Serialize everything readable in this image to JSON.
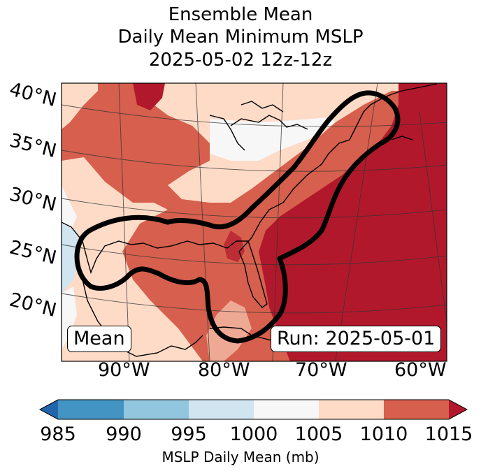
{
  "title": {
    "line1": "Ensemble Mean",
    "line2": "Daily Mean Minimum MSLP",
    "line3": "2025-05-02 12z-12z"
  },
  "map": {
    "lat_labels": [
      "40°N",
      "35°N",
      "30°N",
      "25°N",
      "20°N"
    ],
    "lon_labels": [
      "90°W",
      "80°W",
      "70°W",
      "60°W"
    ],
    "mean_label": "Mean",
    "run_label": "Run: 2025-05-01"
  },
  "colorbar": {
    "ticks": [
      "985",
      "990",
      "995",
      "1000",
      "1005",
      "1010",
      "1015"
    ],
    "label": "MSLP Daily Mean (mb)",
    "colors": [
      "#2166ac",
      "#4393c3",
      "#92c5de",
      "#d1e5f0",
      "#f7f7f7",
      "#fddbc7",
      "#d6604d",
      "#b2182b"
    ]
  },
  "chart_data": {
    "type": "heatmap",
    "title": "Ensemble Mean Daily Mean Minimum MSLP 2025-05-02 12z-12z",
    "variable": "MSLP Daily Mean (mb)",
    "levels": [
      985,
      990,
      995,
      1000,
      1005,
      1010,
      1015
    ],
    "extend": "both",
    "lon_range": [
      -95,
      -60
    ],
    "lat_range": [
      18,
      42
    ],
    "contour_note": "Thick black contour outlines Gulf of Mexico / US East Coast region"
  }
}
